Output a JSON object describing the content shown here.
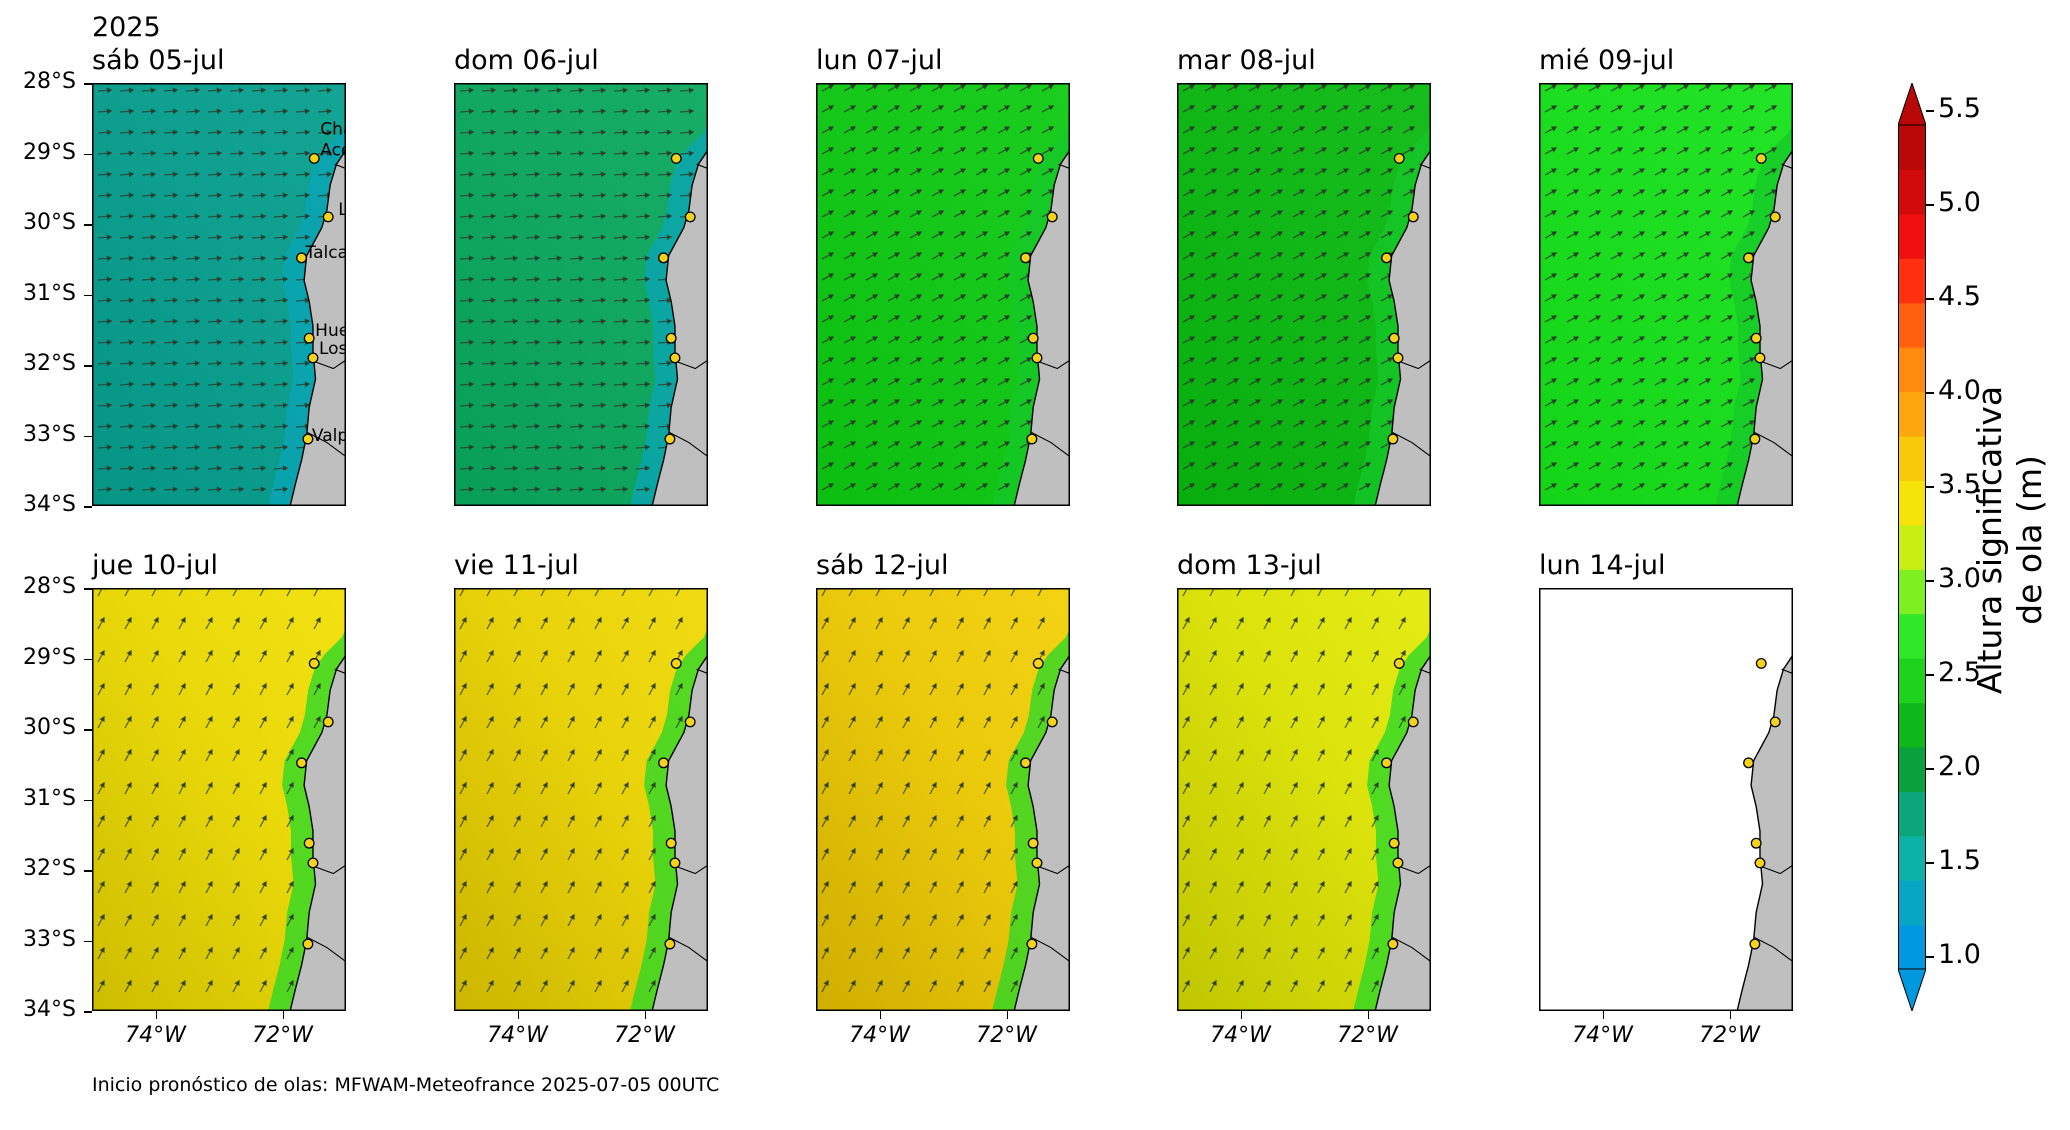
{
  "year_label": "2025",
  "panels": [
    {
      "title": "sáb 05-jul",
      "base_color": "#0e9f8f",
      "arrow_dir": "east",
      "show_city_labels": true,
      "no_data": false
    },
    {
      "title": "dom 06-jul",
      "base_color": "#12a862",
      "arrow_dir": "east",
      "show_city_labels": false,
      "no_data": false
    },
    {
      "title": "lun 07-jul",
      "base_color": "#16c81a",
      "arrow_dir": "northeast",
      "show_city_labels": false,
      "no_data": false
    },
    {
      "title": "mar 08-jul",
      "base_color": "#12b818",
      "arrow_dir": "northeast",
      "show_city_labels": false,
      "no_data": false
    },
    {
      "title": "mié 09-jul",
      "base_color": "#1ede22",
      "arrow_dir": "northeast",
      "show_city_labels": false,
      "no_data": false
    },
    {
      "title": "jue 10-jul",
      "base_color": "#e9d90a",
      "arrow_dir": "north-northeast",
      "show_city_labels": false,
      "no_data": false
    },
    {
      "title": "vie 11-jul",
      "base_color": "#e8d20a",
      "arrow_dir": "north-northeast",
      "show_city_labels": false,
      "no_data": false
    },
    {
      "title": "sáb 12-jul",
      "base_color": "#ebca0c",
      "arrow_dir": "north-northeast",
      "show_city_labels": false,
      "no_data": false
    },
    {
      "title": "dom 13-jul",
      "base_color": "#dce20b",
      "arrow_dir": "north-northeast",
      "show_city_labels": false,
      "no_data": false
    },
    {
      "title": "lun 14-jul",
      "base_color": "#ffffff",
      "arrow_dir": "none",
      "show_city_labels": false,
      "no_data": true
    }
  ],
  "y_ticks": [
    "28°S",
    "29°S",
    "30°S",
    "31°S",
    "32°S",
    "33°S",
    "34°S"
  ],
  "x_ticks": [
    "74°W",
    "72°W"
  ],
  "cities": [
    {
      "name": "Chañaral de Aceituno",
      "lines": [
        "Chañaral de",
        "Aceituno"
      ]
    },
    {
      "name": "La Serena",
      "lines": [
        "La Serena"
      ]
    },
    {
      "name": "Talcaruca",
      "lines": [
        "Talcaruca"
      ]
    },
    {
      "name": "Huentelauquen",
      "lines": [
        "Huentelauquen"
      ]
    },
    {
      "name": "Los Vilos",
      "lines": [
        "Los Vilos"
      ]
    },
    {
      "name": "Valparaíso",
      "lines": [
        "Valparaíso"
      ]
    }
  ],
  "colorbar": {
    "label_line1": "Altura significativa",
    "label_line2": "de ola (m)",
    "ticks": [
      "1.0",
      "1.5",
      "2.0",
      "2.5",
      "3.0",
      "3.5",
      "4.0",
      "4.5",
      "5.0",
      "5.5"
    ],
    "min": 1.0,
    "max": 5.5,
    "colors": [
      "#0099e0",
      "#06a6c4",
      "#0cb2a6",
      "#0ba77a",
      "#09a13d",
      "#0fb81a",
      "#1ed21e",
      "#2fe82a",
      "#7ef022",
      "#c8ee14",
      "#f4e40a",
      "#f8c80a",
      "#fca80c",
      "#ff8a0e",
      "#ff6010",
      "#ff3010",
      "#f01010",
      "#d00a0a",
      "#b80808"
    ]
  },
  "footer": "Inicio pronóstico de olas: MFWAM-Meteofrance 2025-07-05 00UTC"
}
